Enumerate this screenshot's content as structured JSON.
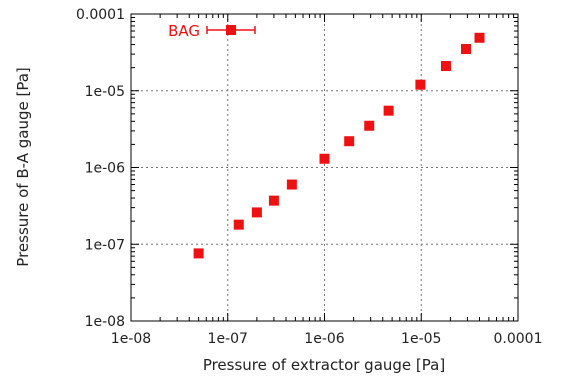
{
  "chart_data": {
    "type": "scatter",
    "title": "",
    "xlabel": "Pressure of extractor gauge [Pa]",
    "ylabel": "Pressure of B-A gauge [Pa]",
    "x_scale": "log",
    "y_scale": "log",
    "xlim": [
      1e-08,
      0.0001
    ],
    "ylim": [
      1e-08,
      0.0001
    ],
    "grid": true,
    "legend_position": "top-left",
    "x_ticks": [
      "1e-08",
      "1e-07",
      "1e-06",
      "1e-05",
      "0.0001"
    ],
    "y_ticks": [
      "1e-08",
      "1e-07",
      "1e-06",
      "1e-05",
      "0.0001"
    ],
    "series": [
      {
        "name": "BAG",
        "color": "#ee1111",
        "marker": "square",
        "points": [
          {
            "x": 5e-08,
            "y": 7.6e-08
          },
          {
            "x": 1.3e-07,
            "y": 1.8e-07
          },
          {
            "x": 2e-07,
            "y": 2.6e-07
          },
          {
            "x": 3e-07,
            "y": 3.7e-07
          },
          {
            "x": 4.6e-07,
            "y": 6e-07
          },
          {
            "x": 1e-06,
            "y": 1.3e-06
          },
          {
            "x": 1.8e-06,
            "y": 2.2e-06
          },
          {
            "x": 2.9e-06,
            "y": 3.5e-06
          },
          {
            "x": 4.6e-06,
            "y": 5.5e-06
          },
          {
            "x": 9.8e-06,
            "y": 1.2e-05
          },
          {
            "x": 1.8e-05,
            "y": 2.1e-05
          },
          {
            "x": 2.9e-05,
            "y": 3.5e-05
          },
          {
            "x": 4e-05,
            "y": 4.9e-05
          }
        ]
      }
    ]
  }
}
